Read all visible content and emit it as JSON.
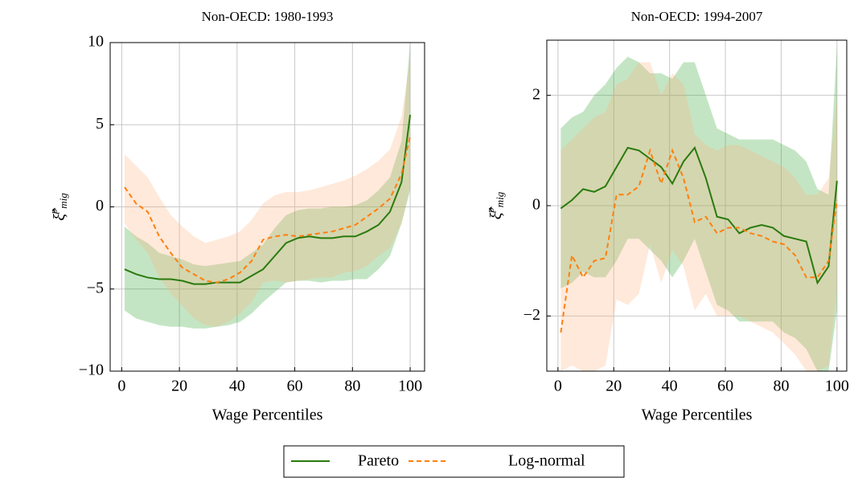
{
  "chart_data": [
    {
      "type": "line",
      "title": "Non-OECD: 1980-1993",
      "x_label": "Wage Percentiles",
      "y_label": {
        "symbol": "ξ̂",
        "sup": "p",
        "sub": "mig"
      },
      "x": [
        1,
        5,
        9,
        13,
        17,
        21,
        25,
        29,
        33,
        37,
        41,
        45,
        49,
        53,
        57,
        61,
        65,
        69,
        73,
        77,
        81,
        85,
        89,
        93,
        97,
        100
      ],
      "xlim": [
        -4,
        105
      ],
      "ylim": [
        -10,
        10
      ],
      "xticks": [
        0,
        20,
        40,
        60,
        80,
        100
      ],
      "yticks": [
        {
          "value": -10,
          "label": "−10"
        },
        {
          "value": -5,
          "label": "−5"
        },
        0,
        5,
        10
      ],
      "grid": true,
      "series": [
        {
          "name": "Pareto",
          "color": "#2a7a0e",
          "band_color": "#2ca02c",
          "dash": false,
          "values": [
            -3.8,
            -4.1,
            -4.3,
            -4.4,
            -4.4,
            -4.5,
            -4.7,
            -4.7,
            -4.6,
            -4.6,
            -4.6,
            -4.2,
            -3.8,
            -3.0,
            -2.2,
            -1.9,
            -1.8,
            -1.9,
            -1.9,
            -1.8,
            -1.8,
            -1.5,
            -1.1,
            -0.3,
            1.5,
            5.6
          ],
          "upper": [
            -1.2,
            -1.8,
            -2.2,
            -2.8,
            -3.0,
            -3.2,
            -3.5,
            -3.6,
            -3.5,
            -3.4,
            -3.3,
            -2.8,
            -2.3,
            -1.3,
            -0.5,
            -0.2,
            -0.1,
            -0.1,
            0.0,
            0.0,
            0.1,
            0.4,
            1.0,
            1.8,
            4.0,
            10
          ],
          "lower": [
            -6.3,
            -6.8,
            -7.0,
            -7.2,
            -7.3,
            -7.3,
            -7.4,
            -7.4,
            -7.3,
            -7.2,
            -7.0,
            -6.5,
            -5.8,
            -5.2,
            -4.6,
            -4.5,
            -4.5,
            -4.6,
            -4.5,
            -4.5,
            -4.4,
            -4.4,
            -3.8,
            -3.0,
            -1.0,
            1.0
          ]
        },
        {
          "name": "Log-normal",
          "color": "#ff7f0e",
          "band_color": "#ffb07a",
          "dash": true,
          "values": [
            1.2,
            0.2,
            -0.3,
            -1.8,
            -2.8,
            -3.7,
            -4.1,
            -4.5,
            -4.6,
            -4.4,
            -4.0,
            -3.3,
            -2.0,
            -1.8,
            -1.7,
            -1.8,
            -1.7,
            -1.6,
            -1.5,
            -1.3,
            -1.1,
            -0.6,
            -0.1,
            0.5,
            2.0,
            4.3
          ],
          "upper": [
            3.2,
            2.5,
            1.8,
            0.6,
            -0.5,
            -1.2,
            -1.8,
            -2.2,
            -2.0,
            -1.8,
            -1.5,
            -0.8,
            0.2,
            0.7,
            0.9,
            0.9,
            1.0,
            1.2,
            1.4,
            1.6,
            1.9,
            2.3,
            2.8,
            3.5,
            5.5,
            9
          ],
          "lower": [
            -1.0,
            -2.0,
            -2.8,
            -4.3,
            -5.3,
            -6.0,
            -6.8,
            -7.2,
            -7.3,
            -7.0,
            -6.5,
            -5.8,
            -4.6,
            -4.5,
            -4.6,
            -4.5,
            -4.4,
            -4.3,
            -4.3,
            -4.0,
            -3.9,
            -3.6,
            -3.0,
            -2.5,
            -1.0,
            1.3
          ]
        }
      ]
    },
    {
      "type": "line",
      "title": "Non-OECD: 1994-2007",
      "x_label": "Wage Percentiles",
      "y_label": {
        "symbol": "ξ̂",
        "sup": "p",
        "sub": "mig"
      },
      "x": [
        1,
        5,
        9,
        13,
        17,
        21,
        25,
        29,
        33,
        37,
        41,
        45,
        49,
        53,
        57,
        61,
        65,
        69,
        73,
        77,
        81,
        85,
        89,
        93,
        97,
        100
      ],
      "xlim": [
        -4,
        103.5
      ],
      "ylim": [
        -3,
        3
      ],
      "xticks": [
        0,
        20,
        40,
        60,
        80,
        100
      ],
      "yticks": [
        {
          "value": -2,
          "label": "−2"
        },
        0,
        2
      ],
      "grid": true,
      "series": [
        {
          "color": "#2a7a0e",
          "band_color": "#2ca02c",
          "dash": false,
          "values": [
            -0.05,
            0.1,
            0.3,
            0.25,
            0.35,
            0.7,
            1.05,
            1.0,
            0.85,
            0.7,
            0.4,
            0.8,
            1.05,
            0.5,
            -0.2,
            -0.25,
            -0.5,
            -0.4,
            -0.35,
            -0.4,
            -0.55,
            -0.6,
            -0.65,
            -1.4,
            -1.1,
            0.45
          ],
          "upper": [
            1.4,
            1.6,
            1.7,
            2.0,
            2.2,
            2.5,
            2.7,
            2.6,
            2.4,
            2.4,
            2.3,
            2.6,
            2.6,
            2.0,
            1.4,
            1.3,
            1.2,
            1.2,
            1.2,
            1.2,
            1.1,
            1.0,
            0.8,
            0.3,
            0.2,
            2.9
          ],
          "lower": [
            -1.5,
            -1.4,
            -1.2,
            -1.3,
            -1.3,
            -1.0,
            -0.6,
            -0.6,
            -0.8,
            -1.0,
            -1.3,
            -1.0,
            -0.6,
            -1.2,
            -1.8,
            -1.9,
            -2.1,
            -2.1,
            -2.1,
            -2.1,
            -2.3,
            -2.4,
            -2.6,
            -3.0,
            -3.0,
            -1.9
          ]
        },
        {
          "color": "#ff7f0e",
          "band_color": "#ffb07a",
          "dash": true,
          "values": [
            -2.3,
            -0.9,
            -1.3,
            -1.0,
            -0.95,
            0.2,
            0.2,
            0.35,
            1.0,
            0.4,
            1.0,
            0.5,
            -0.3,
            -0.2,
            -0.5,
            -0.4,
            -0.4,
            -0.5,
            -0.55,
            -0.65,
            -0.7,
            -0.9,
            -1.3,
            -1.3,
            -1.0,
            0.1
          ],
          "upper": [
            1.0,
            1.2,
            1.4,
            1.6,
            1.7,
            2.2,
            2.3,
            2.6,
            2.6,
            2.0,
            2.4,
            2.2,
            1.3,
            1.1,
            1.0,
            1.1,
            1.1,
            1.0,
            0.9,
            0.8,
            0.7,
            0.5,
            0.2,
            0.2,
            0.5,
            2.0
          ],
          "lower": [
            -3.0,
            -2.9,
            -3.0,
            -3.0,
            -2.9,
            -1.7,
            -1.8,
            -1.6,
            -0.7,
            -1.4,
            -0.8,
            -1.1,
            -1.9,
            -1.6,
            -2.0,
            -2.0,
            -2.0,
            -2.1,
            -2.2,
            -2.3,
            -2.5,
            -2.7,
            -3.0,
            -3.0,
            -2.9,
            -1.5
          ]
        }
      ]
    }
  ]
}
